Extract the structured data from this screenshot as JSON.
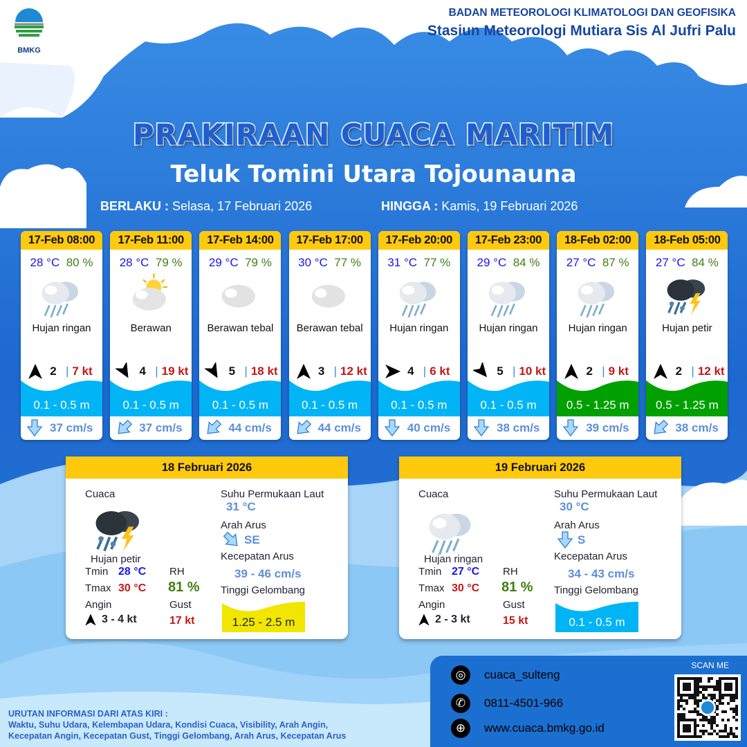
{
  "header": {
    "org": "BADAN METEOROLOGI KLIMATOLOGI DAN GEOFISIKA",
    "station": "Stasiun Meteorologi Mutiara Sis Al Jufri Palu",
    "logo_text": "BMKG"
  },
  "title": "PRAKIRAAN CUACA MARITIM",
  "subtitle": "Teluk Tomini Utara Tojounauna",
  "validity": {
    "from_label": "BERLAKU :",
    "from": "Selasa, 17 Februari 2026",
    "to_label": "HINGGA :",
    "to": "Kamis, 19 Februari 2026"
  },
  "colors": {
    "accent_yellow": "#ffc90e",
    "wave_low": "#00b4f5",
    "wave_moderate": "#00a000",
    "wave_high": "#f0e600"
  },
  "forecasts": [
    {
      "time": "17-Feb 08:00",
      "temp": "28 °C",
      "rh": "80 %",
      "icon": "light-rain",
      "condition": "Hujan ringan",
      "wind_arrow_deg": 180,
      "wind_speed": "2",
      "gust": "7 kt",
      "wave": "0.1 - 0.5 m",
      "wave_color": "#00b4f5",
      "current_dir": "S",
      "current": "37 cm/s"
    },
    {
      "time": "17-Feb 11:00",
      "temp": "28 °C",
      "rh": "79 %",
      "icon": "partly-cloudy",
      "condition": "Berawan",
      "wind_arrow_deg": -30,
      "wind_speed": "4",
      "gust": "19 kt",
      "wave": "0.1 - 0.5 m",
      "wave_color": "#00b4f5",
      "current_dir": "SW",
      "current": "37 cm/s"
    },
    {
      "time": "17-Feb 14:00",
      "temp": "29 °C",
      "rh": "79 %",
      "icon": "cloudy",
      "condition": "Berawan tebal",
      "wind_arrow_deg": -30,
      "wind_speed": "5",
      "gust": "18 kt",
      "wave": "0.1 - 0.5 m",
      "wave_color": "#00b4f5",
      "current_dir": "SW",
      "current": "44 cm/s"
    },
    {
      "time": "17-Feb 17:00",
      "temp": "30 °C",
      "rh": "77 %",
      "icon": "cloudy",
      "condition": "Berawan tebal",
      "wind_arrow_deg": 180,
      "wind_speed": "3",
      "gust": "12 kt",
      "wave": "0.1 - 0.5 m",
      "wave_color": "#00b4f5",
      "current_dir": "SW",
      "current": "44 cm/s"
    },
    {
      "time": "17-Feb 20:00",
      "temp": "31 °C",
      "rh": "77 %",
      "icon": "light-rain",
      "condition": "Hujan ringan",
      "wind_arrow_deg": -90,
      "wind_speed": "4",
      "gust": "6 kt",
      "wave": "0.1 - 0.5 m",
      "wave_color": "#00b4f5",
      "current_dir": "S",
      "current": "40 cm/s"
    },
    {
      "time": "17-Feb 23:00",
      "temp": "29 °C",
      "rh": "84 %",
      "icon": "light-rain",
      "condition": "Hujan ringan",
      "wind_arrow_deg": -40,
      "wind_speed": "5",
      "gust": "10 kt",
      "wave": "0.1 - 0.5 m",
      "wave_color": "#00b4f5",
      "current_dir": "S",
      "current": "38 cm/s"
    },
    {
      "time": "18-Feb 02:00",
      "temp": "27 °C",
      "rh": "87 %",
      "icon": "light-rain",
      "condition": "Hujan ringan",
      "wind_arrow_deg": 180,
      "wind_speed": "2",
      "gust": "9 kt",
      "wave": "0.5 - 1.25 m",
      "wave_color": "#00a000",
      "current_dir": "S",
      "current": "39 cm/s"
    },
    {
      "time": "18-Feb 05:00",
      "temp": "27 °C",
      "rh": "84 %",
      "icon": "thunderstorm",
      "condition": "Hujan petir",
      "wind_arrow_deg": 180,
      "wind_speed": "2",
      "gust": "12 kt",
      "wave": "0.5 - 1.25 m",
      "wave_color": "#00a000",
      "current_dir": "SW",
      "current": "38 cm/s"
    }
  ],
  "daily": [
    {
      "date": "18 Februari 2026",
      "cuaca_label": "Cuaca",
      "icon": "thunderstorm",
      "condition": "Hujan petir",
      "tmin_label": "Tmin",
      "tmin": "28 °C",
      "tmax_label": "Tmax",
      "tmax": "30 °C",
      "rh_label": "RH",
      "rh": "81 %",
      "angin_label": "Angin",
      "wind": "3  - 4 kt",
      "wind_arrow_deg": 180,
      "gust_label": "Gust",
      "gust": "17 kt",
      "sst_label": "Suhu Permukaan Laut",
      "sst": "31 °C",
      "arus_label": "Arah Arus",
      "arus": "SE",
      "kec_label": "Kecepatan Arus",
      "kec": "39 - 46 cm/s",
      "tg_label": "Tinggi Gelombang",
      "wave": "1.25 - 2.5 m",
      "wave_color": "#f0e600"
    },
    {
      "date": "19 Februari 2026",
      "cuaca_label": "Cuaca",
      "icon": "light-rain",
      "condition": "Hujan ringan",
      "tmin_label": "Tmin",
      "tmin": "27 °C",
      "tmax_label": "Tmax",
      "tmax": "30 °C",
      "rh_label": "RH",
      "rh": "81 %",
      "angin_label": "Angin",
      "wind": "2  - 3 kt",
      "wind_arrow_deg": 180,
      "gust_label": "Gust",
      "gust": "15 kt",
      "sst_label": "Suhu Permukaan Laut",
      "sst": "30 °C",
      "arus_label": "Arah Arus",
      "arus": "S",
      "kec_label": "Kecepatan Arus",
      "kec": "34 - 43 cm/s",
      "tg_label": "Tinggi Gelombang",
      "wave": "0.1 - 0.5 m",
      "wave_color": "#00b4f5"
    }
  ],
  "contact": {
    "instagram": "cuaca_sulteng",
    "phone": "0811-4501-966",
    "website": "www.cuaca.bmkg.go.id",
    "scan": "SCAN ME"
  },
  "legend": {
    "title": "URUTAN INFORMASI DARI ATAS KIRI :",
    "line1": "Waktu, Suhu Udara, Kelembapan Udara, Kondisi Cuaca, Visibility, Arah Angin,",
    "line2": "Kecepatan Angin, Kecepatan Gust, Tinggi Gelombang, Arah Arus, Kecepatan Arus"
  }
}
